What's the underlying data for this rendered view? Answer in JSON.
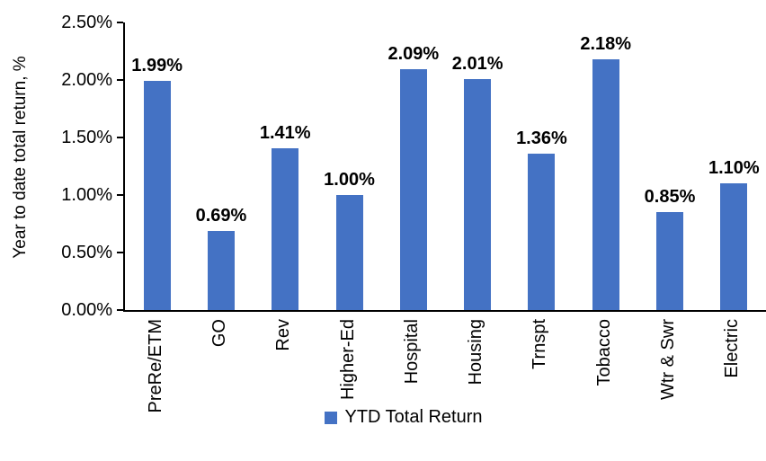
{
  "chart_data": {
    "type": "bar",
    "categories": [
      "PreRe/ETM",
      "GO",
      "Rev",
      "Higher-Ed",
      "Hospital",
      "Housing",
      "Trnspt",
      "Tobacco",
      "Wtr & Swr",
      "Electric"
    ],
    "series": [
      {
        "name": "YTD Total Return",
        "values": [
          1.99,
          0.69,
          1.41,
          1.0,
          2.09,
          2.01,
          1.36,
          2.18,
          0.85,
          1.1
        ]
      }
    ],
    "data_labels": [
      "1.99%",
      "0.69%",
      "1.41%",
      "1.00%",
      "2.09%",
      "2.01%",
      "1.36%",
      "2.18%",
      "0.85%",
      "1.10%"
    ],
    "title": "",
    "xlabel": "",
    "ylabel": "Year to date total return, %",
    "ylim": [
      0,
      2.5
    ],
    "ytick_step": 0.5,
    "ytick_labels": [
      "0.00%",
      "0.50%",
      "1.00%",
      "1.50%",
      "2.00%",
      "2.50%"
    ],
    "grid": false,
    "legend": {
      "position": "bottom",
      "label": "YTD Total Return"
    },
    "colors": {
      "bar": "#4472C4",
      "axis": "#000000",
      "text": "#000000",
      "background": "#FFFFFF"
    }
  }
}
